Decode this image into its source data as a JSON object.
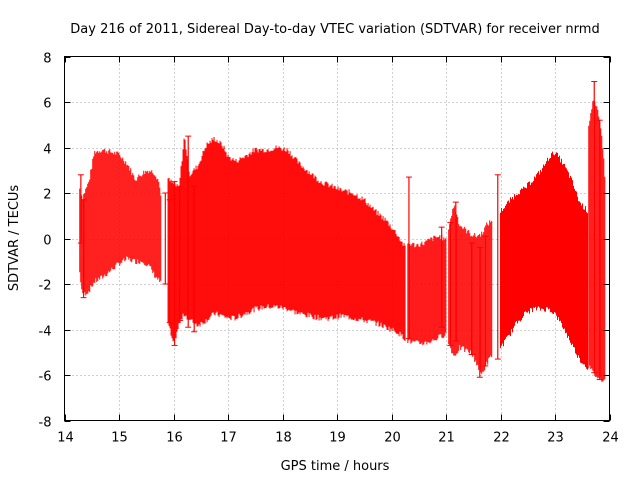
{
  "chart_data": {
    "type": "errorbar",
    "title": "Day 216 of 2011, Sidereal Day-to-day VTEC variation (SDTVAR) for receiver nrmd",
    "xlabel": "GPS time / hours",
    "ylabel": "SDTVAR / TECUs",
    "xlim": [
      14,
      24
    ],
    "ylim": [
      -8,
      8
    ],
    "xticks": [
      "14",
      "15",
      "16",
      "17",
      "18",
      "19",
      "20",
      "21",
      "22",
      "23",
      "24"
    ],
    "yticks": [
      "-8",
      "-6",
      "-4",
      "-2",
      "0",
      "2",
      "4",
      "6",
      "8"
    ],
    "grid": true,
    "series_color": "#ff0000",
    "segments": [
      {
        "name": "block-1",
        "x": [
          14.28,
          14.33,
          14.45,
          14.55,
          14.7,
          14.85,
          15.0,
          15.15,
          15.3,
          15.45,
          15.55,
          15.65,
          15.72,
          15.78
        ],
        "upper": [
          2.2,
          1.8,
          2.5,
          3.8,
          3.9,
          3.8,
          3.7,
          3.3,
          2.6,
          2.9,
          3.0,
          2.9,
          2.6,
          1.8
        ],
        "lower": [
          -1.5,
          -2.5,
          -2.3,
          -1.9,
          -1.7,
          -1.4,
          -1.1,
          -0.9,
          -1.0,
          -1.0,
          -1.2,
          -1.6,
          -1.8,
          -2.0
        ]
      },
      {
        "name": "block-2",
        "x": [
          15.9,
          16.0,
          16.1,
          16.2,
          16.3,
          16.45,
          16.6,
          16.75,
          16.9,
          17.0,
          17.15,
          17.3,
          17.5,
          17.7,
          17.9,
          18.1,
          18.3,
          18.5,
          18.7,
          18.9,
          19.1,
          19.3,
          19.5,
          19.7,
          19.9,
          20.1,
          20.25
        ],
        "upper": [
          2.6,
          2.4,
          2.2,
          4.5,
          2.8,
          3.2,
          4.1,
          4.4,
          4.1,
          3.6,
          3.4,
          3.6,
          3.9,
          3.9,
          4.0,
          3.9,
          3.3,
          2.9,
          2.5,
          2.3,
          2.1,
          2.0,
          1.7,
          1.2,
          0.8,
          0.2,
          -0.4
        ],
        "lower": [
          -3.7,
          -4.7,
          -3.8,
          -3.3,
          -3.6,
          -3.8,
          -3.6,
          -3.3,
          -3.4,
          -3.5,
          -3.5,
          -3.3,
          -3.1,
          -3.0,
          -3.0,
          -3.1,
          -3.3,
          -3.4,
          -3.5,
          -3.5,
          -3.4,
          -3.5,
          -3.6,
          -3.7,
          -3.9,
          -4.1,
          -4.4
        ]
      },
      {
        "name": "block-3",
        "x": [
          20.3,
          20.45,
          20.6,
          20.75,
          20.9,
          21.0
        ],
        "upper": [
          -0.2,
          -0.3,
          -0.2,
          0.0,
          0.1,
          -0.1
        ],
        "lower": [
          -4.5,
          -4.6,
          -4.6,
          -4.5,
          -4.3,
          -4.2
        ]
      },
      {
        "name": "block-4",
        "x": [
          21.05,
          21.15,
          21.25,
          21.35,
          21.45,
          21.55,
          21.65,
          21.75,
          21.85
        ],
        "upper": [
          0.5,
          1.5,
          0.6,
          0.4,
          0.2,
          0.1,
          0.2,
          0.6,
          0.8
        ],
        "lower": [
          -4.6,
          -5.2,
          -4.8,
          -4.9,
          -5.0,
          -5.4,
          -6.0,
          -5.5,
          -5.1
        ]
      },
      {
        "name": "block-5",
        "x": [
          22.0,
          22.15,
          22.3,
          22.45,
          22.6,
          22.75,
          22.9,
          23.0,
          23.15,
          23.3,
          23.45,
          23.6
        ],
        "upper": [
          1.2,
          1.6,
          2.0,
          2.2,
          2.6,
          3.0,
          3.6,
          3.8,
          3.3,
          2.6,
          1.6,
          1.2
        ],
        "lower": [
          -4.8,
          -4.3,
          -3.7,
          -3.3,
          -3.1,
          -3.1,
          -3.1,
          -3.3,
          -3.9,
          -4.6,
          -5.3,
          -5.7
        ]
      },
      {
        "name": "block-6",
        "x": [
          23.62,
          23.7,
          23.78,
          23.86,
          23.92
        ],
        "upper": [
          5.0,
          6.1,
          5.6,
          4.6,
          2.6
        ],
        "lower": [
          -5.6,
          -5.9,
          -6.1,
          -6.2,
          -6.1
        ]
      }
    ],
    "spikes": [
      {
        "x": 14.3,
        "upper": 2.8,
        "lower": -0.2
      },
      {
        "x": 14.35,
        "upper": 1.7,
        "lower": -2.6
      },
      {
        "x": 15.85,
        "upper": 2.0,
        "lower": -2.0
      },
      {
        "x": 15.93,
        "upper": 1.7,
        "lower": -3.7
      },
      {
        "x": 16.02,
        "upper": 2.5,
        "lower": -4.7
      },
      {
        "x": 16.12,
        "upper": 2.3,
        "lower": -3.6
      },
      {
        "x": 16.27,
        "upper": 4.5,
        "lower": -3.9
      },
      {
        "x": 16.38,
        "upper": 2.3,
        "lower": -4.1
      },
      {
        "x": 20.32,
        "upper": 2.7,
        "lower": -4.4
      },
      {
        "x": 20.92,
        "upper": 0.5,
        "lower": -3.9
      },
      {
        "x": 21.08,
        "upper": 0.7,
        "lower": -4.7
      },
      {
        "x": 21.18,
        "upper": 1.6,
        "lower": -4.5
      },
      {
        "x": 21.47,
        "upper": -0.2,
        "lower": -5.1
      },
      {
        "x": 21.62,
        "upper": -0.4,
        "lower": -6.1
      },
      {
        "x": 21.72,
        "upper": 0.1,
        "lower": -5.6
      },
      {
        "x": 21.95,
        "upper": 2.8,
        "lower": -5.3
      },
      {
        "x": 23.72,
        "upper": 6.9,
        "lower": -5.9
      },
      {
        "x": 23.82,
        "upper": 5.2,
        "lower": -6.2
      }
    ]
  }
}
